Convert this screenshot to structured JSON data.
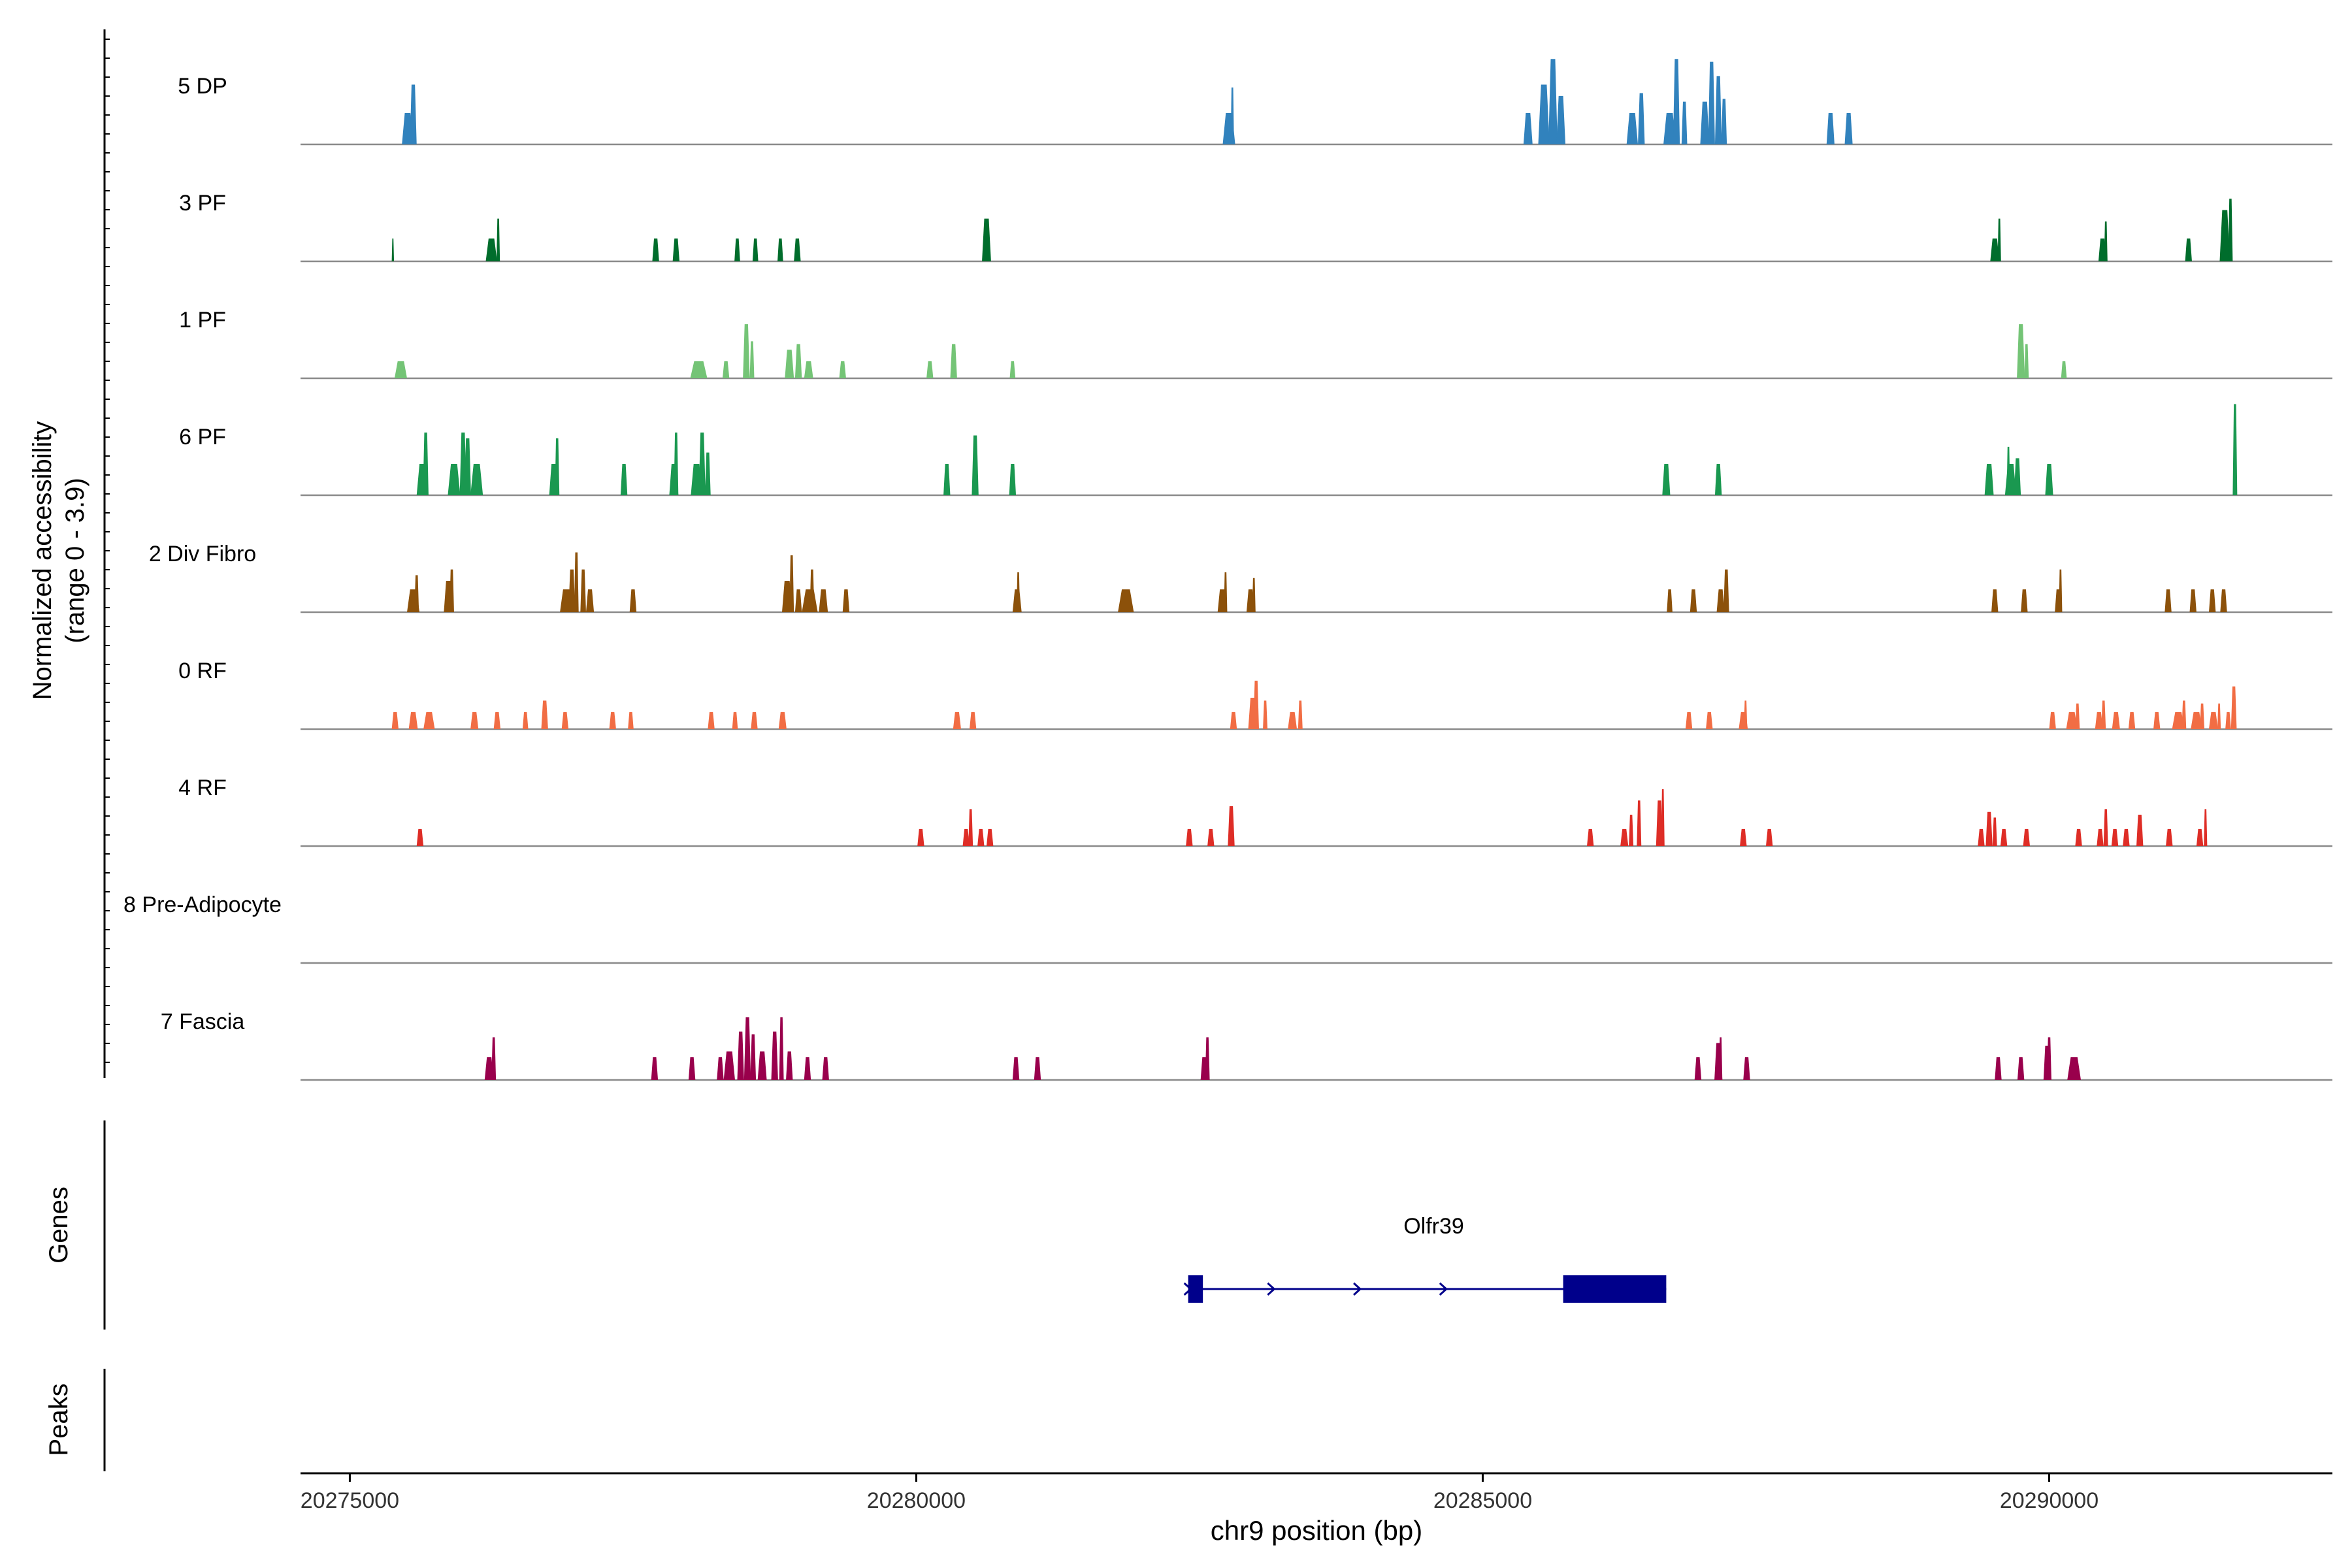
{
  "chart_data": {
    "type": "area",
    "title": "",
    "ylabel": [
      "Normalized accessibility",
      "(range 0 - 3.9)"
    ],
    "xlabel": "chr9 position (bp)",
    "ylim": [
      0,
      3.9
    ],
    "xlim": [
      20274565,
      20292500
    ],
    "x_ticks": [
      20275000,
      20280000,
      20285000,
      20290000
    ],
    "x_tick_labels": [
      "20275000",
      "20280000",
      "20285000",
      "20290000"
    ],
    "tracks": [
      {
        "name": "5 DP",
        "color": "#3182bd",
        "peaks": [
          [
            20275510,
            100,
            1.1
          ],
          [
            20275560,
            60,
            2.1
          ],
          [
            20282760,
            110,
            1.1
          ],
          [
            20282790,
            30,
            2.0
          ],
          [
            20285400,
            80,
            1.1
          ],
          [
            20285540,
            100,
            2.1
          ],
          [
            20285620,
            80,
            3.0
          ],
          [
            20285690,
            80,
            1.7
          ],
          [
            20286320,
            100,
            1.1
          ],
          [
            20286400,
            60,
            1.8
          ],
          [
            20286650,
            110,
            1.1
          ],
          [
            20286710,
            60,
            3.0
          ],
          [
            20286780,
            50,
            1.5
          ],
          [
            20286960,
            80,
            1.5
          ],
          [
            20287020,
            60,
            2.9
          ],
          [
            20287080,
            60,
            2.4
          ],
          [
            20287130,
            50,
            1.6
          ],
          [
            20288070,
            70,
            1.1
          ],
          [
            20288230,
            70,
            1.1
          ]
        ]
      },
      {
        "name": "3 PF",
        "color": "#006d2c",
        "peaks": [
          [
            20275380,
            20,
            0.8
          ],
          [
            20276250,
            100,
            0.8
          ],
          [
            20276310,
            30,
            1.5
          ],
          [
            20277700,
            60,
            0.8
          ],
          [
            20277880,
            60,
            0.8
          ],
          [
            20278420,
            50,
            0.8
          ],
          [
            20278580,
            50,
            0.8
          ],
          [
            20278800,
            50,
            0.8
          ],
          [
            20278950,
            60,
            0.8
          ],
          [
            20280620,
            80,
            1.5
          ],
          [
            20289520,
            80,
            0.8
          ],
          [
            20289560,
            30,
            1.5
          ],
          [
            20290470,
            70,
            0.8
          ],
          [
            20290500,
            30,
            1.4
          ],
          [
            20291230,
            60,
            0.8
          ],
          [
            20291550,
            90,
            1.8
          ],
          [
            20291600,
            40,
            2.2
          ]
        ]
      },
      {
        "name": "1 PF",
        "color": "#74c476",
        "peaks": [
          [
            20275450,
            110,
            0.6
          ],
          [
            20278080,
            150,
            0.6
          ],
          [
            20278320,
            60,
            0.6
          ],
          [
            20278500,
            60,
            1.9
          ],
          [
            20278550,
            40,
            1.3
          ],
          [
            20278880,
            80,
            1.0
          ],
          [
            20278960,
            60,
            1.2
          ],
          [
            20279050,
            80,
            0.6
          ],
          [
            20279350,
            60,
            0.6
          ],
          [
            20280120,
            60,
            0.6
          ],
          [
            20280330,
            60,
            1.2
          ],
          [
            20280850,
            50,
            0.6
          ],
          [
            20289750,
            70,
            1.9
          ],
          [
            20289800,
            40,
            1.2
          ],
          [
            20290130,
            50,
            0.6
          ]
        ]
      },
      {
        "name": "6 PF",
        "color": "#1a9850",
        "peaks": [
          [
            20275640,
            100,
            1.1
          ],
          [
            20275670,
            50,
            2.2
          ],
          [
            20275920,
            110,
            1.1
          ],
          [
            20276000,
            60,
            2.2
          ],
          [
            20276040,
            60,
            2.0
          ],
          [
            20276120,
            110,
            1.1
          ],
          [
            20276800,
            80,
            1.1
          ],
          [
            20276830,
            40,
            2.0
          ],
          [
            20277420,
            60,
            1.1
          ],
          [
            20277860,
            80,
            1.1
          ],
          [
            20277880,
            40,
            2.2
          ],
          [
            20278060,
            100,
            1.1
          ],
          [
            20278110,
            60,
            2.2
          ],
          [
            20278160,
            50,
            1.5
          ],
          [
            20280270,
            60,
            1.1
          ],
          [
            20280520,
            60,
            2.1
          ],
          [
            20280850,
            60,
            1.1
          ],
          [
            20286620,
            70,
            1.1
          ],
          [
            20287080,
            60,
            1.1
          ],
          [
            20289470,
            80,
            1.1
          ],
          [
            20289660,
            100,
            1.1
          ],
          [
            20289640,
            30,
            1.7
          ],
          [
            20289720,
            60,
            1.3
          ],
          [
            20290000,
            70,
            1.1
          ],
          [
            20291640,
            40,
            3.2
          ]
        ]
      },
      {
        "name": "2 Div Fibro",
        "color": "#8c510a",
        "peaks": [
          [
            20275560,
            110,
            0.8
          ],
          [
            20275590,
            40,
            1.3
          ],
          [
            20275870,
            80,
            1.1
          ],
          [
            20275900,
            40,
            1.5
          ],
          [
            20276910,
            110,
            0.8
          ],
          [
            20276960,
            60,
            1.5
          ],
          [
            20277000,
            40,
            2.1
          ],
          [
            20277060,
            50,
            1.5
          ],
          [
            20277120,
            70,
            0.8
          ],
          [
            20277500,
            60,
            0.8
          ],
          [
            20278860,
            90,
            1.1
          ],
          [
            20278900,
            40,
            2.0
          ],
          [
            20278960,
            60,
            0.8
          ],
          [
            20279060,
            140,
            0.8
          ],
          [
            20279080,
            40,
            1.5
          ],
          [
            20279180,
            80,
            0.8
          ],
          [
            20279380,
            60,
            0.8
          ],
          [
            20280890,
            80,
            0.8
          ],
          [
            20280900,
            30,
            1.4
          ],
          [
            20281850,
            140,
            0.8
          ],
          [
            20282700,
            80,
            0.8
          ],
          [
            20282730,
            30,
            1.4
          ],
          [
            20282950,
            70,
            0.8
          ],
          [
            20282980,
            30,
            1.2
          ],
          [
            20286650,
            50,
            0.8
          ],
          [
            20286860,
            60,
            0.8
          ],
          [
            20287100,
            70,
            0.8
          ],
          [
            20287150,
            50,
            1.5
          ],
          [
            20289520,
            60,
            0.8
          ],
          [
            20289780,
            60,
            0.8
          ],
          [
            20290080,
            60,
            0.8
          ],
          [
            20290100,
            30,
            1.5
          ],
          [
            20291050,
            60,
            0.8
          ],
          [
            20291270,
            60,
            0.8
          ],
          [
            20291440,
            60,
            0.8
          ],
          [
            20291540,
            60,
            0.8
          ]
        ]
      },
      {
        "name": "0 RF",
        "color": "#f16d44",
        "peaks": [
          [
            20275400,
            60,
            0.6
          ],
          [
            20275560,
            80,
            0.6
          ],
          [
            20275700,
            100,
            0.6
          ],
          [
            20276100,
            70,
            0.6
          ],
          [
            20276300,
            60,
            0.6
          ],
          [
            20276550,
            50,
            0.6
          ],
          [
            20276720,
            60,
            1.0
          ],
          [
            20276900,
            60,
            0.6
          ],
          [
            20277320,
            60,
            0.6
          ],
          [
            20277480,
            50,
            0.6
          ],
          [
            20278190,
            60,
            0.6
          ],
          [
            20278400,
            50,
            0.6
          ],
          [
            20278570,
            60,
            0.6
          ],
          [
            20278820,
            70,
            0.6
          ],
          [
            20280360,
            70,
            0.6
          ],
          [
            20280500,
            60,
            0.6
          ],
          [
            20282800,
            60,
            0.6
          ],
          [
            20282970,
            80,
            1.1
          ],
          [
            20283000,
            50,
            1.7
          ],
          [
            20283080,
            40,
            1.0
          ],
          [
            20283320,
            80,
            0.6
          ],
          [
            20283390,
            40,
            1.0
          ],
          [
            20286820,
            60,
            0.6
          ],
          [
            20287000,
            60,
            0.6
          ],
          [
            20287300,
            80,
            0.6
          ],
          [
            20287320,
            30,
            1.0
          ],
          [
            20290030,
            60,
            0.6
          ],
          [
            20290200,
            100,
            0.6
          ],
          [
            20290250,
            40,
            0.9
          ],
          [
            20290440,
            70,
            0.6
          ],
          [
            20290480,
            40,
            1.0
          ],
          [
            20290590,
            70,
            0.6
          ],
          [
            20290730,
            60,
            0.6
          ],
          [
            20290950,
            60,
            0.6
          ],
          [
            20291140,
            110,
            0.6
          ],
          [
            20291190,
            40,
            1.0
          ],
          [
            20291300,
            100,
            0.6
          ],
          [
            20291350,
            40,
            0.9
          ],
          [
            20291450,
            80,
            0.6
          ],
          [
            20291500,
            30,
            0.9
          ],
          [
            20291580,
            50,
            0.6
          ],
          [
            20291630,
            50,
            1.5
          ]
        ]
      },
      {
        "name": "4 RF",
        "color": "#de2d26",
        "peaks": [
          [
            20275620,
            60,
            0.6
          ],
          [
            20280040,
            60,
            0.6
          ],
          [
            20280440,
            60,
            0.6
          ],
          [
            20280480,
            40,
            1.3
          ],
          [
            20280570,
            60,
            0.6
          ],
          [
            20280650,
            60,
            0.6
          ],
          [
            20282410,
            60,
            0.6
          ],
          [
            20282600,
            60,
            0.6
          ],
          [
            20282780,
            60,
            1.4
          ],
          [
            20285950,
            60,
            0.6
          ],
          [
            20286250,
            70,
            0.6
          ],
          [
            20286310,
            40,
            1.1
          ],
          [
            20286380,
            40,
            1.6
          ],
          [
            20286560,
            60,
            1.6
          ],
          [
            20286590,
            30,
            2.0
          ],
          [
            20287300,
            60,
            0.6
          ],
          [
            20287530,
            60,
            0.6
          ],
          [
            20289400,
            60,
            0.6
          ],
          [
            20289470,
            60,
            1.2
          ],
          [
            20289520,
            40,
            1.0
          ],
          [
            20289600,
            60,
            0.6
          ],
          [
            20289800,
            60,
            0.6
          ],
          [
            20290260,
            60,
            0.6
          ],
          [
            20290450,
            60,
            0.6
          ],
          [
            20290500,
            40,
            1.3
          ],
          [
            20290580,
            60,
            0.6
          ],
          [
            20290680,
            60,
            0.6
          ],
          [
            20290800,
            60,
            1.1
          ],
          [
            20291060,
            60,
            0.6
          ],
          [
            20291330,
            60,
            0.6
          ],
          [
            20291380,
            30,
            1.3
          ]
        ]
      },
      {
        "name": "8 Pre-Adipocyte",
        "color": "#e6550d",
        "peaks": []
      },
      {
        "name": "7 Fascia",
        "color": "#99004c",
        "peaks": [
          [
            20276230,
            80,
            0.8
          ],
          [
            20276270,
            40,
            1.5
          ],
          [
            20277690,
            60,
            0.8
          ],
          [
            20278020,
            60,
            0.8
          ],
          [
            20278270,
            60,
            0.8
          ],
          [
            20278350,
            100,
            1.0
          ],
          [
            20278450,
            60,
            1.7
          ],
          [
            20278510,
            60,
            2.2
          ],
          [
            20278560,
            50,
            1.6
          ],
          [
            20278640,
            80,
            1.0
          ],
          [
            20278750,
            60,
            1.7
          ],
          [
            20278810,
            40,
            2.2
          ],
          [
            20278880,
            60,
            1.0
          ],
          [
            20279040,
            60,
            0.8
          ],
          [
            20279200,
            60,
            0.8
          ],
          [
            20280880,
            60,
            0.8
          ],
          [
            20281070,
            60,
            0.8
          ],
          [
            20282540,
            60,
            0.8
          ],
          [
            20282570,
            40,
            1.5
          ],
          [
            20286900,
            60,
            0.8
          ],
          [
            20287080,
            70,
            1.3
          ],
          [
            20287100,
            30,
            1.5
          ],
          [
            20287330,
            60,
            0.8
          ],
          [
            20289550,
            60,
            0.8
          ],
          [
            20289750,
            60,
            0.8
          ],
          [
            20289980,
            60,
            1.2
          ],
          [
            20290000,
            40,
            1.5
          ],
          [
            20290220,
            120,
            0.8
          ]
        ]
      }
    ],
    "gene_panel_label": "Genes",
    "peak_panel_label": "Peaks",
    "genes": [
      {
        "name": "Olfr39",
        "start": 20282400,
        "end": 20286620,
        "strand": "+",
        "exons": [
          [
            20282400,
            20282530
          ],
          [
            20285710,
            20286620
          ]
        ],
        "color": "#00008b"
      }
    ]
  }
}
